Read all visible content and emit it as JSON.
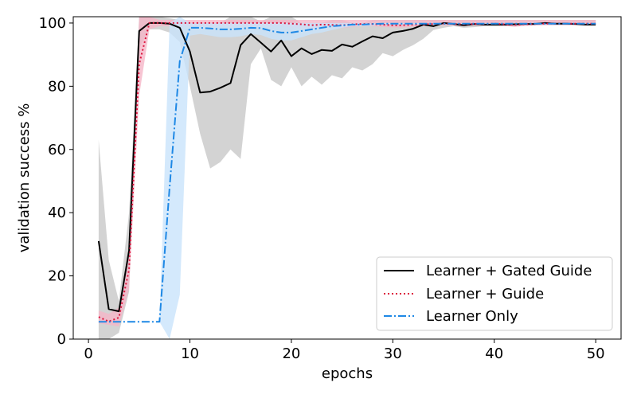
{
  "chart_data": {
    "type": "line",
    "xlabel": "epochs",
    "ylabel": "validation success %",
    "xlim": [
      -1.5,
      52.5
    ],
    "ylim": [
      0,
      102
    ],
    "xticks": [
      0,
      10,
      20,
      30,
      40,
      50
    ],
    "yticks": [
      0,
      20,
      40,
      60,
      80,
      100
    ],
    "legend_position": "lower-right",
    "series": [
      {
        "name": "Learner + Gated Guide",
        "color": "#000000",
        "band_color": "#c8c8c8",
        "style": "solid",
        "x": [
          1,
          2,
          3,
          4,
          5,
          6,
          7,
          8,
          9,
          10,
          11,
          12,
          13,
          14,
          15,
          16,
          17,
          18,
          19,
          20,
          21,
          22,
          23,
          24,
          25,
          26,
          27,
          28,
          29,
          30,
          31,
          32,
          33,
          34,
          35,
          36,
          37,
          38,
          39,
          40,
          41,
          42,
          43,
          44,
          45,
          46,
          47,
          48,
          49,
          50
        ],
        "values": [
          31,
          9.5,
          8.8,
          28,
          97.5,
          100,
          100,
          99.8,
          98.5,
          91,
          78,
          78.3,
          79.5,
          81,
          93,
          96.5,
          93.8,
          91,
          94.5,
          89.5,
          92,
          90.2,
          91.5,
          91.2,
          93.2,
          92.5,
          94.2,
          95.8,
          95.2,
          97,
          97.5,
          98.2,
          99.5,
          99,
          100,
          99.7,
          99.3,
          99.7,
          99.5,
          99.5,
          99.5,
          99.6,
          99.7,
          99.7,
          100,
          99.8,
          99.8,
          99.7,
          99.5,
          99.5
        ],
        "upper": [
          63,
          25,
          12,
          40,
          102,
          102,
          102,
          101.5,
          101,
          100,
          100,
          100,
          100,
          102,
          102,
          102,
          100.5,
          102,
          102,
          102,
          100,
          100,
          100,
          101,
          101,
          100,
          100,
          101,
          101,
          101,
          101,
          101,
          101,
          101,
          101,
          101,
          101,
          101,
          101,
          101,
          101,
          101,
          101,
          101,
          101,
          101,
          101,
          101,
          101,
          101
        ],
        "lower": [
          0,
          0,
          2,
          15,
          92,
          98,
          98,
          97,
          94,
          80,
          65,
          54,
          56,
          60,
          57,
          87,
          92,
          82,
          80,
          86,
          80,
          83,
          80.5,
          83.5,
          82.5,
          86,
          85,
          87,
          90.5,
          89.5,
          91.5,
          93,
          95,
          97.8,
          98.5,
          99,
          98.5,
          98.7,
          99,
          99,
          99,
          99.2,
          99.3,
          99.4,
          99.5,
          99.4,
          99.4,
          99.4,
          99.2,
          99.2
        ]
      },
      {
        "name": "Learner + Guide",
        "color": "#dc143c",
        "band_color": "#f5b7c8",
        "style": "dotted",
        "x": [
          1,
          2,
          3,
          4,
          5,
          6,
          7,
          8,
          9,
          10,
          11,
          12,
          13,
          14,
          15,
          16,
          17,
          18,
          19,
          20,
          21,
          22,
          23,
          24,
          25,
          26,
          27,
          28,
          29,
          30,
          31,
          32,
          33,
          34,
          35,
          36,
          37,
          38,
          39,
          40,
          41,
          42,
          43,
          44,
          45,
          46,
          47,
          48,
          49,
          50
        ],
        "values": [
          7,
          5.6,
          6.8,
          22,
          87,
          100,
          100,
          100,
          100,
          100,
          100,
          100,
          100,
          100,
          100,
          100,
          100,
          100,
          100,
          99.8,
          99.6,
          99.3,
          99.5,
          99.4,
          99.3,
          99.6,
          99.7,
          99.7,
          99.5,
          99.3,
          99.3,
          99.5,
          99.6,
          99.7,
          99.8,
          99.7,
          99.6,
          99.7,
          99.7,
          99.8,
          99.6,
          99.4,
          99.6,
          99.7,
          99.8,
          99.8,
          99.8,
          99.8,
          99.8,
          99.8
        ],
        "upper": [
          9,
          8,
          10,
          27,
          102,
          102,
          101,
          101,
          101,
          101,
          101,
          101,
          101,
          101,
          101,
          101,
          101,
          101,
          101,
          101,
          101,
          101,
          101,
          101,
          101,
          101,
          101,
          101,
          101,
          101,
          101,
          101,
          101,
          101,
          101,
          101,
          101,
          101,
          101,
          101,
          101,
          101,
          101,
          101,
          101,
          101,
          101,
          101,
          101,
          101
        ],
        "lower": [
          5,
          4.5,
          4,
          16,
          77,
          98,
          99,
          99,
          99,
          99,
          99,
          99,
          99,
          99,
          99,
          99,
          99,
          99,
          99,
          98.6,
          98.4,
          98,
          98.6,
          98.6,
          98.4,
          98.8,
          99,
          99,
          98.8,
          98.6,
          98.6,
          98.8,
          99,
          99.2,
          99.2,
          99.2,
          99,
          99.2,
          99.2,
          99.3,
          99.1,
          98.8,
          99.1,
          99.2,
          99.3,
          99.3,
          99.3,
          99.3,
          99.3,
          99.3
        ]
      },
      {
        "name": "Learner Only",
        "color": "#1e88e5",
        "band_color": "#c9e3fb",
        "style": "dashdot",
        "x": [
          1,
          2,
          3,
          4,
          5,
          6,
          7,
          8,
          9,
          10,
          11,
          12,
          13,
          14,
          15,
          16,
          17,
          18,
          19,
          20,
          21,
          22,
          23,
          24,
          25,
          26,
          27,
          28,
          29,
          30,
          31,
          32,
          33,
          34,
          35,
          36,
          37,
          38,
          39,
          40,
          41,
          42,
          43,
          44,
          45,
          46,
          47,
          48,
          49,
          50
        ],
        "values": [
          5.5,
          5.5,
          5.5,
          5.5,
          5.5,
          5.5,
          5.5,
          48,
          88,
          98.5,
          98.5,
          98.3,
          98,
          98,
          98.2,
          98.5,
          98.4,
          97.5,
          97,
          97,
          97.5,
          98,
          98.5,
          99,
          99.2,
          99.5,
          99.5,
          99.7,
          99.8,
          99.8,
          99.8,
          99.8,
          99.8,
          99.8,
          99.8,
          99.8,
          99.8,
          99.8,
          99.8,
          99.8,
          99.8,
          99.8,
          99.8,
          99.8,
          99.8,
          99.8,
          99.8,
          99.8,
          99.8,
          99.8
        ],
        "upper": [
          5.5,
          5.5,
          5.5,
          5.5,
          5.5,
          5.5,
          5.5,
          100,
          102,
          100,
          100,
          100,
          100,
          100,
          100,
          100,
          100,
          100,
          100,
          100,
          100,
          100,
          100,
          100,
          100,
          100,
          100,
          100,
          100,
          100,
          100,
          100,
          100,
          100,
          100,
          100,
          100,
          100,
          100,
          100,
          100,
          100,
          100,
          100,
          100,
          100,
          100,
          100,
          100,
          100
        ],
        "lower": [
          5.5,
          5.5,
          5.5,
          5.5,
          5.5,
          5.5,
          5.5,
          0,
          14,
          96,
          96.5,
          96,
          95.5,
          95.5,
          95.8,
          96.5,
          96.2,
          95,
          94.5,
          94.5,
          95.5,
          96.5,
          97,
          97.8,
          98.5,
          99,
          99,
          99.2,
          99.5,
          99.5,
          99.5,
          99.5,
          99.5,
          99.5,
          99.5,
          99.5,
          99.5,
          99.5,
          99.5,
          99.5,
          99.5,
          99.5,
          99.5,
          99.5,
          99.5,
          99.5,
          99.5,
          99.5,
          99.5,
          99.5
        ]
      }
    ]
  }
}
